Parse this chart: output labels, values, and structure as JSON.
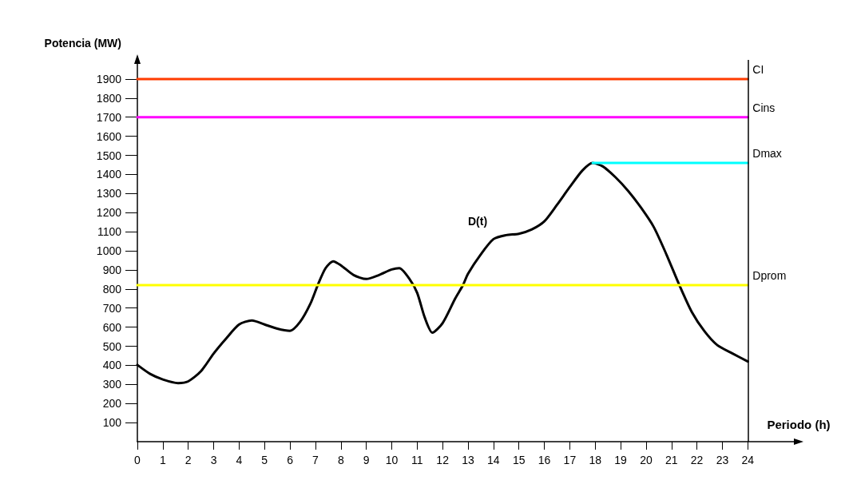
{
  "chart_data": {
    "type": "line",
    "ylabel": "Potencia (MW)",
    "xlabel": "Periodo (h)",
    "xlim": [
      0,
      26
    ],
    "xticks": [
      0,
      1,
      2,
      3,
      4,
      5,
      6,
      7,
      8,
      9,
      10,
      11,
      12,
      13,
      14,
      15,
      16,
      17,
      18,
      19,
      20,
      21,
      22,
      23,
      24
    ],
    "ylim": [
      0,
      2000
    ],
    "yticks": [
      100,
      200,
      300,
      400,
      500,
      600,
      700,
      800,
      900,
      1000,
      1100,
      1200,
      1300,
      1400,
      1500,
      1600,
      1700,
      1800,
      1900
    ],
    "grid": false,
    "legend": false,
    "marker": "none",
    "line_style": "solid",
    "series": [
      {
        "color": "#000000",
        "x": [
          0,
          0.5,
          1,
          1.6,
          2,
          2.5,
          3,
          3.5,
          4,
          4.5,
          5,
          5.5,
          6,
          6.4,
          6.8,
          7.1,
          7.4,
          7.7,
          8,
          8.5,
          9,
          9.5,
          10,
          10.3,
          10.7,
          11,
          11.3,
          11.6,
          12,
          12.5,
          12.8,
          13,
          13.5,
          14,
          14.5,
          15,
          15.5,
          16,
          16.5,
          17,
          17.5,
          17.9,
          18.3,
          18.8,
          19.3,
          19.8,
          20.3,
          20.8,
          21.3,
          21.8,
          22.3,
          22.8,
          23.4,
          24
        ],
        "values": [
          402,
          355,
          326,
          307,
          316,
          369,
          462,
          542,
          614,
          635,
          614,
          592,
          581,
          628,
          722,
          823,
          909,
          945,
          924,
          873,
          852,
          873,
          902,
          909,
          852,
          780,
          650,
          571,
          621,
          751,
          820,
          880,
          981,
          1061,
          1082,
          1089,
          1111,
          1154,
          1241,
          1334,
          1421,
          1460,
          1442,
          1385,
          1313,
          1226,
          1125,
          981,
          823,
          679,
          578,
          506,
          462,
          420
        ]
      },
      {
        "name": "CI",
        "color": "#ff3c00",
        "x": [
          0,
          24
        ],
        "values": [
          1900,
          1900
        ]
      },
      {
        "name": "Cins",
        "color": "#ff00ff",
        "x": [
          0,
          24
        ],
        "values": [
          1700,
          1700
        ]
      },
      {
        "name": "Dmax",
        "color": "#00ffff",
        "x": [
          17.9,
          24
        ],
        "values": [
          1460,
          1460
        ]
      },
      {
        "name": "Dprom",
        "color": "#ffff00",
        "x": [
          0,
          24
        ],
        "values": [
          820,
          820
        ]
      }
    ],
    "ref_lines": [
      {
        "axis": "x",
        "value": 24,
        "color": "#000000"
      }
    ],
    "annotations": [
      "D(t)"
    ]
  }
}
